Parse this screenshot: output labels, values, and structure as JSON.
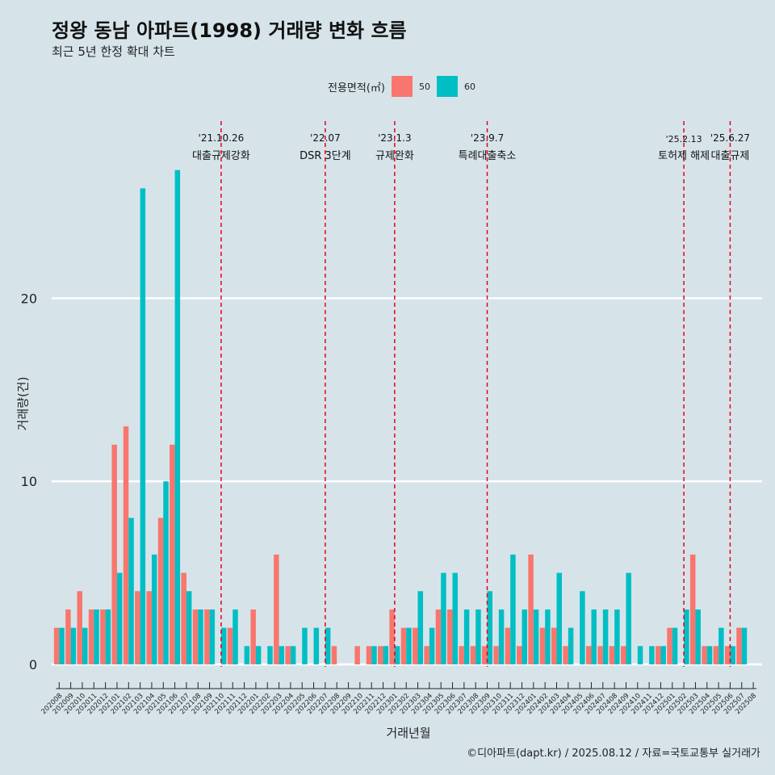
{
  "title": "정왕 동남 아파트(1998) 거래량 변화 흐름",
  "subtitle": "최근 5년 한정 확대 차트",
  "caption": "©디아파트(dapt.kr) / 2025.08.12 / 자료=국토교통부 실거래가",
  "legend": {
    "title": "전용면적(㎡)",
    "items": [
      "50",
      "60"
    ]
  },
  "colors": {
    "50": "#f8766d",
    "60": "#00bfc4",
    "background": "#d6e4ea",
    "grid": "#ffffff",
    "event_line": "#e8001c"
  },
  "chart_data": {
    "type": "bar",
    "xlabel": "거래년월",
    "ylabel": "거래량(건)",
    "yticks": [
      0,
      10,
      20
    ],
    "ylim": [
      -1.2,
      27.5
    ],
    "grid": true,
    "legend_position": "top",
    "categories": [
      "202008",
      "202009",
      "202010",
      "202011",
      "202012",
      "202101",
      "202102",
      "202103",
      "202104",
      "202105",
      "202106",
      "202107",
      "202108",
      "202109",
      "202110",
      "202111",
      "202112",
      "202201",
      "202202",
      "202203",
      "202204",
      "202205",
      "202206",
      "202207",
      "202208",
      "202209",
      "202210",
      "202211",
      "202212",
      "202301",
      "202302",
      "202303",
      "202304",
      "202305",
      "202306",
      "202307",
      "202308",
      "202309",
      "202310",
      "202311",
      "202312",
      "202401",
      "202402",
      "202403",
      "202404",
      "202405",
      "202406",
      "202407",
      "202408",
      "202409",
      "202410",
      "202411",
      "202412",
      "202501",
      "202502",
      "202503",
      "202504",
      "202505",
      "202506",
      "202507",
      "202508"
    ],
    "series": [
      {
        "name": "50",
        "values": [
          2,
          3,
          4,
          3,
          3,
          12,
          13,
          4,
          4,
          8,
          12,
          5,
          3,
          3,
          0,
          2,
          0,
          3,
          0,
          6,
          1,
          0,
          0,
          0,
          1,
          0,
          1,
          1,
          1,
          3,
          2,
          2,
          1,
          3,
          3,
          1,
          1,
          1,
          1,
          2,
          1,
          6,
          2,
          2,
          1,
          0,
          1,
          1,
          1,
          1,
          0,
          0,
          1,
          2,
          0,
          6,
          1,
          1,
          1,
          2,
          0
        ]
      },
      {
        "name": "60",
        "values": [
          2,
          2,
          2,
          3,
          3,
          5,
          8,
          26,
          6,
          10,
          27,
          4,
          3,
          3,
          2,
          3,
          1,
          1,
          1,
          1,
          1,
          2,
          2,
          2,
          0,
          0,
          0,
          1,
          1,
          1,
          2,
          4,
          2,
          5,
          5,
          3,
          3,
          4,
          3,
          6,
          3,
          3,
          3,
          5,
          2,
          4,
          3,
          3,
          3,
          5,
          1,
          1,
          1,
          2,
          3,
          3,
          1,
          2,
          1,
          2,
          0
        ]
      }
    ],
    "events": [
      {
        "date": "'21.10.26",
        "label": "대출규제강화",
        "index": 14
      },
      {
        "date": "'22.07",
        "label": "DSR 3단계",
        "index": 23
      },
      {
        "date": "'23.1.3",
        "label": "규제완화",
        "index": 29
      },
      {
        "date": "'23.9.7",
        "label": "특례대출축소",
        "index": 37
      },
      {
        "date": "'25.2.13",
        "label": "토허제 해제",
        "index": 54
      },
      {
        "date": "'25.6.27",
        "label": "대출규제",
        "index": 58
      }
    ]
  }
}
